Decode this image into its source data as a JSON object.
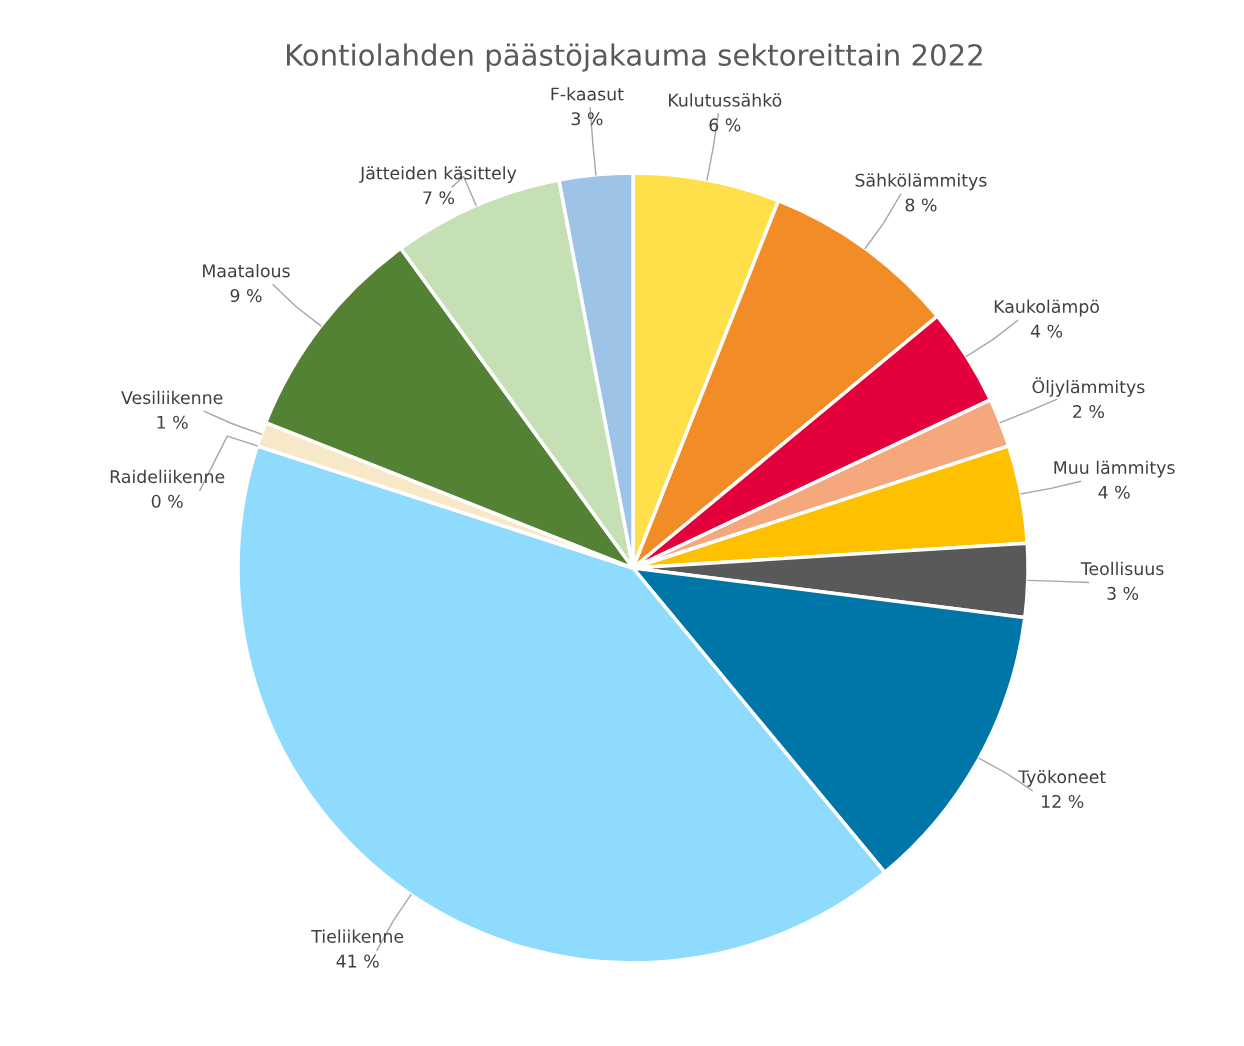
{
  "chart_data": {
    "type": "pie",
    "title": "Kontiolahden päästöjakauma sektoreittain 2022",
    "categories": [
      "Kulutussähkö",
      "Sähkölämmitys",
      "Kaukolämpö",
      "Öljylämmitys",
      "Muu lämmitys",
      "Teollisuus",
      "Työkoneet",
      "Tieliikenne",
      "Raideliikenne",
      "Vesiliikenne",
      "Maatalous",
      "Jätteiden käsittely",
      "F-kaasut"
    ],
    "values": [
      6,
      8,
      4,
      2,
      4,
      3,
      12,
      41,
      0,
      1,
      9,
      7,
      3
    ],
    "value_labels": [
      "6 %",
      "8 %",
      "4 %",
      "2 %",
      "4 %",
      "3 %",
      "12 %",
      "41 %",
      "0 %",
      "1 %",
      "9 %",
      "7 %",
      "3 %"
    ],
    "colors": [
      "#ffdf4a",
      "#f28c26",
      "#e4003a",
      "#f4a87c",
      "#ffc000",
      "#595959",
      "#0076a8",
      "#8fdbfd",
      "#fff2cc",
      "#f7e9c8",
      "#548235",
      "#c5e0b4",
      "#9dc3e6"
    ],
    "legend": false
  }
}
